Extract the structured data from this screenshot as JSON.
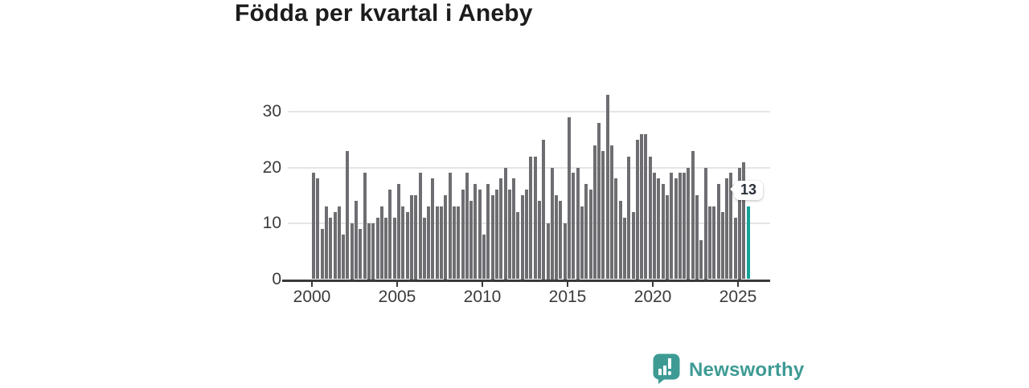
{
  "title": "Födda per kvartal i Aneby",
  "chart_data": {
    "type": "bar",
    "title": "Födda per kvartal i Aneby",
    "xlabel": "",
    "ylabel": "",
    "unit": "födda (births) per quarter",
    "ylim": [
      0,
      35
    ],
    "y_ticks": [
      0,
      10,
      20,
      30
    ],
    "x_ticks": [
      2000,
      2005,
      2010,
      2015,
      2020,
      2025
    ],
    "grid": "horizontal",
    "legend": "none",
    "bar_color": "#6e6e72",
    "highlight_color": "#14a29a",
    "highlight": {
      "period": "2025 Q3",
      "value": 13,
      "label": "13"
    },
    "years": [
      {
        "year": 2000,
        "values": [
          19,
          18,
          9,
          13
        ]
      },
      {
        "year": 2001,
        "values": [
          11,
          12,
          13,
          8
        ]
      },
      {
        "year": 2002,
        "values": [
          23,
          10,
          14,
          9
        ]
      },
      {
        "year": 2003,
        "values": [
          19,
          10,
          10,
          11
        ]
      },
      {
        "year": 2004,
        "values": [
          13,
          11,
          16,
          11
        ]
      },
      {
        "year": 2005,
        "values": [
          17,
          13,
          12,
          15
        ]
      },
      {
        "year": 2006,
        "values": [
          15,
          19,
          11,
          13
        ]
      },
      {
        "year": 2007,
        "values": [
          18,
          13,
          13,
          15
        ]
      },
      {
        "year": 2008,
        "values": [
          19,
          13,
          13,
          16
        ]
      },
      {
        "year": 2009,
        "values": [
          19,
          14,
          17,
          16
        ]
      },
      {
        "year": 2010,
        "values": [
          8,
          17,
          15,
          16
        ]
      },
      {
        "year": 2011,
        "values": [
          18,
          20,
          16,
          18
        ]
      },
      {
        "year": 2012,
        "values": [
          12,
          15,
          16,
          22
        ]
      },
      {
        "year": 2013,
        "values": [
          22,
          14,
          25,
          10
        ]
      },
      {
        "year": 2014,
        "values": [
          20,
          15,
          14,
          10
        ]
      },
      {
        "year": 2015,
        "values": [
          29,
          19,
          20,
          13
        ]
      },
      {
        "year": 2016,
        "values": [
          17,
          16,
          24,
          28
        ]
      },
      {
        "year": 2017,
        "values": [
          23,
          33,
          24,
          18
        ]
      },
      {
        "year": 2018,
        "values": [
          14,
          11,
          22,
          12
        ]
      },
      {
        "year": 2019,
        "values": [
          25,
          26,
          26,
          22
        ]
      },
      {
        "year": 2020,
        "values": [
          19,
          18,
          17,
          15
        ]
      },
      {
        "year": 2021,
        "values": [
          19,
          18,
          19,
          19
        ]
      },
      {
        "year": 2022,
        "values": [
          20,
          23,
          15,
          7
        ]
      },
      {
        "year": 2023,
        "values": [
          20,
          13,
          13,
          17
        ]
      },
      {
        "year": 2024,
        "values": [
          12,
          18,
          19,
          11
        ]
      },
      {
        "year": 2025,
        "values": [
          20,
          21,
          13
        ]
      }
    ]
  },
  "annotation": {
    "value_label": "13"
  },
  "logo": {
    "text": "Newsworthy",
    "color": "#3d9b94",
    "icon": "speech-bubble-bar-chart-icon"
  }
}
